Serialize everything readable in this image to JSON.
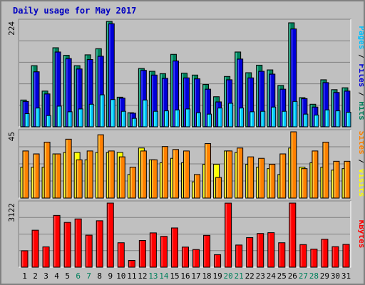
{
  "title": "Daily usage for May 2017",
  "colors": {
    "background": "#c0c0c0",
    "hits": "#00805c",
    "files": "#0000d8",
    "pages": "#00c0ff",
    "visits": "#ffff00",
    "sites": "#ff8000",
    "kbytes": "#ff0000",
    "weekend_day": "#00805c",
    "weekday": "#000000"
  },
  "chart_data": [
    {
      "type": "bar",
      "panel": "top",
      "ymax_label": "224",
      "ylim": [
        0,
        224
      ],
      "side_labels": [
        {
          "text": "Pages",
          "color": "#00c0ff"
        },
        {
          "text": " / ",
          "color": "#000000"
        },
        {
          "text": "Files",
          "color": "#0000d8"
        },
        {
          "text": " / ",
          "color": "#000000"
        },
        {
          "text": "Hits",
          "color": "#00805c"
        }
      ],
      "categories": [
        "1",
        "2",
        "3",
        "4",
        "5",
        "6",
        "7",
        "8",
        "9",
        "10",
        "11",
        "12",
        "13",
        "14",
        "15",
        "16",
        "17",
        "18",
        "19",
        "20",
        "21",
        "22",
        "23",
        "24",
        "25",
        "26",
        "27",
        "28",
        "29",
        "30",
        "31"
      ],
      "series": [
        {
          "name": "Hits",
          "values": [
            57,
            130,
            76,
            168,
            152,
            130,
            153,
            166,
            224,
            63,
            30,
            124,
            118,
            113,
            154,
            114,
            110,
            90,
            64,
            107,
            159,
            115,
            131,
            121,
            88,
            221,
            62,
            48,
            100,
            79,
            83
          ]
        },
        {
          "name": "Files",
          "values": [
            54,
            117,
            70,
            159,
            145,
            123,
            143,
            150,
            219,
            61,
            29,
            120,
            110,
            103,
            140,
            104,
            102,
            80,
            53,
            100,
            144,
            104,
            118,
            112,
            80,
            208,
            60,
            42,
            94,
            73,
            76
          ]
        },
        {
          "name": "Pages",
          "values": [
            28,
            40,
            24,
            44,
            32,
            38,
            48,
            68,
            58,
            33,
            18,
            57,
            33,
            34,
            36,
            38,
            30,
            27,
            40,
            50,
            40,
            32,
            33,
            42,
            33,
            54,
            27,
            25,
            36,
            34,
            31
          ]
        }
      ]
    },
    {
      "type": "bar",
      "panel": "middle",
      "ymax_label": "45",
      "ylim": [
        0,
        45
      ],
      "side_labels": [
        {
          "text": "Sites",
          "color": "#ff8000"
        },
        {
          "text": " / ",
          "color": "#000000"
        },
        {
          "text": "Visits",
          "color": "#ffff00"
        }
      ],
      "categories": [
        "1",
        "2",
        "3",
        "4",
        "5",
        "6",
        "7",
        "8",
        "9",
        "10",
        "11",
        "12",
        "13",
        "14",
        "15",
        "16",
        "17",
        "18",
        "19",
        "20",
        "21",
        "22",
        "23",
        "24",
        "25",
        "26",
        "27",
        "28",
        "29",
        "30",
        "31"
      ],
      "series": [
        {
          "name": "Visits",
          "values": [
            21,
            21,
            21,
            30,
            31,
            31,
            26,
            31,
            31,
            31,
            16,
            34,
            26,
            24,
            27,
            24,
            11,
            23,
            23,
            32,
            31,
            23,
            21,
            20,
            16,
            34,
            21,
            24,
            21,
            19,
            20
          ]
        },
        {
          "name": "Sites",
          "values": [
            32,
            30,
            38,
            30,
            40,
            26,
            32,
            43,
            32,
            28,
            21,
            32,
            26,
            35,
            33,
            32,
            16,
            37,
            14,
            32,
            34,
            28,
            27,
            23,
            30,
            45,
            20,
            32,
            38,
            25,
            25
          ]
        }
      ]
    },
    {
      "type": "bar",
      "panel": "bottom",
      "ymax_label": "3122",
      "ylim": [
        0,
        3122
      ],
      "side_labels": [
        {
          "text": "KBytes",
          "color": "#ff0000"
        }
      ],
      "categories": [
        "1",
        "2",
        "3",
        "4",
        "5",
        "6",
        "7",
        "8",
        "9",
        "10",
        "11",
        "12",
        "13",
        "14",
        "15",
        "16",
        "17",
        "18",
        "19",
        "20",
        "21",
        "22",
        "23",
        "24",
        "25",
        "26",
        "27",
        "28",
        "29",
        "30",
        "31"
      ],
      "series": [
        {
          "name": "KBytes",
          "values": [
            800,
            1800,
            990,
            2520,
            2180,
            2350,
            1560,
            2260,
            3122,
            1190,
            330,
            1300,
            1670,
            1500,
            1910,
            980,
            860,
            1550,
            610,
            3120,
            1080,
            1440,
            1640,
            1680,
            1190,
            3122,
            1100,
            880,
            1360,
            1000,
            1110
          ]
        }
      ]
    }
  ],
  "day_labels": [
    {
      "text": "1",
      "weekend": false
    },
    {
      "text": "2",
      "weekend": false
    },
    {
      "text": "3",
      "weekend": false
    },
    {
      "text": "4",
      "weekend": false
    },
    {
      "text": "5",
      "weekend": false
    },
    {
      "text": "6",
      "weekend": true
    },
    {
      "text": "7",
      "weekend": true
    },
    {
      "text": "8",
      "weekend": false
    },
    {
      "text": "9",
      "weekend": false
    },
    {
      "text": "10",
      "weekend": false
    },
    {
      "text": "11",
      "weekend": false
    },
    {
      "text": "12",
      "weekend": false
    },
    {
      "text": "13",
      "weekend": true
    },
    {
      "text": "14",
      "weekend": true
    },
    {
      "text": "15",
      "weekend": false
    },
    {
      "text": "16",
      "weekend": false
    },
    {
      "text": "17",
      "weekend": false
    },
    {
      "text": "18",
      "weekend": false
    },
    {
      "text": "19",
      "weekend": false
    },
    {
      "text": "20",
      "weekend": true
    },
    {
      "text": "21",
      "weekend": true
    },
    {
      "text": "22",
      "weekend": false
    },
    {
      "text": "23",
      "weekend": false
    },
    {
      "text": "24",
      "weekend": false
    },
    {
      "text": "25",
      "weekend": false
    },
    {
      "text": "26",
      "weekend": false
    },
    {
      "text": "27",
      "weekend": true
    },
    {
      "text": "28",
      "weekend": true
    },
    {
      "text": "29",
      "weekend": false
    },
    {
      "text": "30",
      "weekend": false
    },
    {
      "text": "31",
      "weekend": false
    }
  ]
}
